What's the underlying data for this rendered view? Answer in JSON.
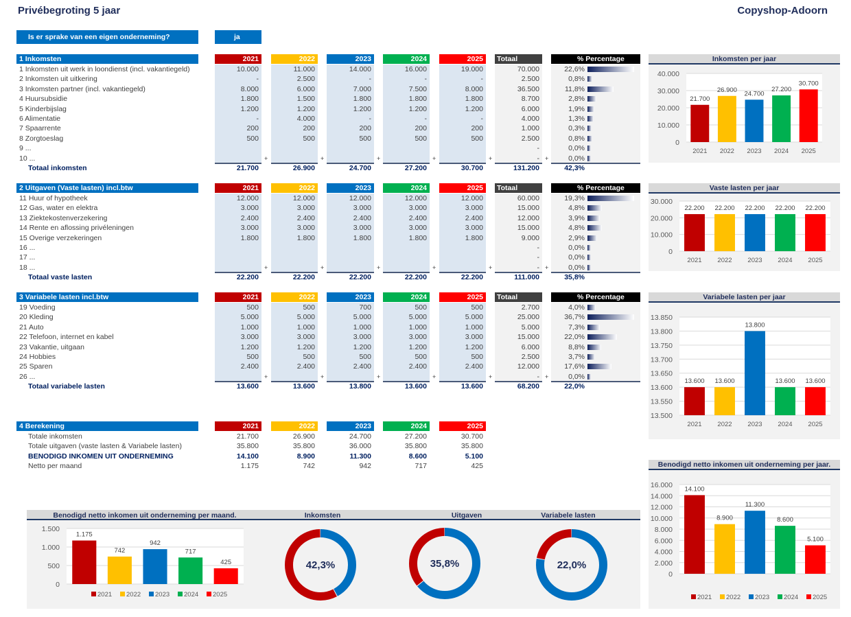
{
  "header": {
    "title": "Privébegroting 5 jaar",
    "brand": "Copyshop-Adoorn"
  },
  "question": {
    "label": "Is er sprake van een eigen onderneming?",
    "answer": "ja"
  },
  "years": [
    "2021",
    "2022",
    "2023",
    "2024",
    "2025"
  ],
  "colors": {
    "2021": "#c00000",
    "2022": "#ffc000",
    "2023": "#0070c0",
    "2024": "#00b050",
    "2025": "#ff0000",
    "section": "#0070c0",
    "totaal": "#404040",
    "percentage": "#000000"
  },
  "labels": {
    "totaal": "Totaal",
    "percentage": "%  Percentage"
  },
  "sections": [
    {
      "title": "1  Inkomsten",
      "total_label": "Totaal inkomsten",
      "rows": [
        {
          "label": " 1 Inkomsten uit werk in loondienst (incl. vakantiegeld)",
          "values": [
            "10.000",
            "11.000",
            "14.000",
            "16.000",
            "19.000"
          ],
          "total": "70.000",
          "pct": "22,6%",
          "pct_value": 22.6
        },
        {
          "label": " 2 Inkomsten uit uitkering",
          "values": [
            "-",
            "2.500",
            "-",
            "-",
            "-"
          ],
          "total": "2.500",
          "pct": "0,8%",
          "pct_value": 0.8
        },
        {
          "label": " 3 Inkomsten partner (incl. vakantiegeld)",
          "values": [
            "8.000",
            "6.000",
            "7.000",
            "7.500",
            "8.000"
          ],
          "total": "36.500",
          "pct": "11,8%",
          "pct_value": 11.8
        },
        {
          "label": " 4 Huursubsidie",
          "values": [
            "1.800",
            "1.500",
            "1.800",
            "1.800",
            "1.800"
          ],
          "total": "8.700",
          "pct": "2,8%",
          "pct_value": 2.8
        },
        {
          "label": " 5 Kinderbijslag",
          "values": [
            "1.200",
            "1.200",
            "1.200",
            "1.200",
            "1.200"
          ],
          "total": "6.000",
          "pct": "1,9%",
          "pct_value": 1.9
        },
        {
          "label": " 6 Alimentatie",
          "values": [
            "-",
            "4.000",
            "-",
            "-",
            "-"
          ],
          "total": "4.000",
          "pct": "1,3%",
          "pct_value": 1.3
        },
        {
          "label": " 7 Spaarrente",
          "values": [
            "200",
            "200",
            "200",
            "200",
            "200"
          ],
          "total": "1.000",
          "pct": "0,3%",
          "pct_value": 0.3
        },
        {
          "label": " 8 Zorgtoeslag",
          "values": [
            "500",
            "500",
            "500",
            "500",
            "500"
          ],
          "total": "2.500",
          "pct": "0,8%",
          "pct_value": 0.8
        },
        {
          "label": " 9 ...",
          "values": [
            "",
            "",
            "",
            "",
            ""
          ],
          "total": "-",
          "pct": "0,0%",
          "pct_value": 0
        },
        {
          "label": "10 ...",
          "values": [
            "",
            "",
            "",
            "",
            ""
          ],
          "total": "-",
          "pct": "0,0%",
          "pct_value": 0
        }
      ],
      "totals": [
        "21.700",
        "26.900",
        "24.700",
        "27.200",
        "30.700"
      ],
      "grand_total": "131.200",
      "grand_pct": "42,3%"
    },
    {
      "title": "2  Uitgaven (Vaste lasten) incl.btw",
      "total_label": "Totaal vaste lasten",
      "rows": [
        {
          "label": "11 Huur of hypotheek",
          "values": [
            "12.000",
            "12.000",
            "12.000",
            "12.000",
            "12.000"
          ],
          "total": "60.000",
          "pct": "19,3%",
          "pct_value": 19.3
        },
        {
          "label": "12 Gas, water en elektra",
          "values": [
            "3.000",
            "3.000",
            "3.000",
            "3.000",
            "3.000"
          ],
          "total": "15.000",
          "pct": "4,8%",
          "pct_value": 4.8
        },
        {
          "label": "13 Ziektekostenverzekering",
          "values": [
            "2.400",
            "2.400",
            "2.400",
            "2.400",
            "2.400"
          ],
          "total": "12.000",
          "pct": "3,9%",
          "pct_value": 3.9
        },
        {
          "label": "14 Rente en aflossing privéleningen",
          "values": [
            "3.000",
            "3.000",
            "3.000",
            "3.000",
            "3.000"
          ],
          "total": "15.000",
          "pct": "4,8%",
          "pct_value": 4.8
        },
        {
          "label": "15 Overige verzekeringen",
          "values": [
            "1.800",
            "1.800",
            "1.800",
            "1.800",
            "1.800"
          ],
          "total": "9.000",
          "pct": "2,9%",
          "pct_value": 2.9
        },
        {
          "label": "16 ...",
          "values": [
            "",
            "",
            "",
            "",
            ""
          ],
          "total": "-",
          "pct": "0,0%",
          "pct_value": 0
        },
        {
          "label": "17 ...",
          "values": [
            "",
            "",
            "",
            "",
            ""
          ],
          "total": "-",
          "pct": "0,0%",
          "pct_value": 0
        },
        {
          "label": "18 ...",
          "values": [
            "",
            "",
            "",
            "",
            ""
          ],
          "total": "-",
          "pct": "0,0%",
          "pct_value": 0
        }
      ],
      "totals": [
        "22.200",
        "22.200",
        "22.200",
        "22.200",
        "22.200"
      ],
      "grand_total": "111.000",
      "grand_pct": "35,8%"
    },
    {
      "title": "3  Variabele lasten incl.btw",
      "total_label": "Totaal variabele lasten",
      "rows": [
        {
          "label": "19 Voeding",
          "values": [
            "500",
            "500",
            "700",
            "500",
            "500"
          ],
          "total": "2.700",
          "pct": "4,0%",
          "pct_value": 4.0
        },
        {
          "label": "20 Kleding",
          "values": [
            "5.000",
            "5.000",
            "5.000",
            "5.000",
            "5.000"
          ],
          "total": "25.000",
          "pct": "36,7%",
          "pct_value": 36.7
        },
        {
          "label": "21 Auto",
          "values": [
            "1.000",
            "1.000",
            "1.000",
            "1.000",
            "1.000"
          ],
          "total": "5.000",
          "pct": "7,3%",
          "pct_value": 7.3
        },
        {
          "label": "22 Telefoon, internet en kabel",
          "values": [
            "3.000",
            "3.000",
            "3.000",
            "3.000",
            "3.000"
          ],
          "total": "15.000",
          "pct": "22,0%",
          "pct_value": 22.0
        },
        {
          "label": "23 Vakantie, uitgaan",
          "values": [
            "1.200",
            "1.200",
            "1.200",
            "1.200",
            "1.200"
          ],
          "total": "6.000",
          "pct": "8,8%",
          "pct_value": 8.8
        },
        {
          "label": "24 Hobbies",
          "values": [
            "500",
            "500",
            "500",
            "500",
            "500"
          ],
          "total": "2.500",
          "pct": "3,7%",
          "pct_value": 3.7
        },
        {
          "label": "25 Sparen",
          "values": [
            "2.400",
            "2.400",
            "2.400",
            "2.400",
            "2.400"
          ],
          "total": "12.000",
          "pct": "17,6%",
          "pct_value": 17.6
        },
        {
          "label": "26 ...",
          "values": [
            "",
            "",
            "",
            "",
            ""
          ],
          "total": "-",
          "pct": "0,0%",
          "pct_value": 0
        }
      ],
      "totals": [
        "13.600",
        "13.600",
        "13.800",
        "13.600",
        "13.600"
      ],
      "grand_total": "68.200",
      "grand_pct": "22,0%"
    }
  ],
  "berekening": {
    "title": "4  Berekening",
    "rows": [
      {
        "label": "Totale inkomsten",
        "values": [
          "21.700",
          "26.900",
          "24.700",
          "27.200",
          "30.700"
        ],
        "bold": false
      },
      {
        "label": "Totale uitgaven (vaste lasten & Variabele lasten)",
        "values": [
          "35.800",
          "35.800",
          "36.000",
          "35.800",
          "35.800"
        ],
        "bold": false
      },
      {
        "label": "BENODIGD INKOMEN UIT ONDERNEMING",
        "values": [
          "14.100",
          "8.900",
          "11.300",
          "8.600",
          "5.100"
        ],
        "bold": true
      },
      {
        "label": "Netto per maand",
        "values": [
          "1.175",
          "742",
          "942",
          "717",
          "425"
        ],
        "bold": false
      }
    ]
  },
  "chart_data": [
    {
      "type": "bar",
      "title": "Inkomsten per jaar",
      "categories": [
        "2021",
        "2022",
        "2023",
        "2024",
        "2025"
      ],
      "values": [
        21700,
        26900,
        24700,
        27200,
        30700
      ],
      "data_labels": [
        "21.700",
        "26.900",
        "24.700",
        "27.200",
        "30.700"
      ],
      "ylim": [
        0,
        40000
      ],
      "ticks": [
        "0",
        "10.000",
        "20.000",
        "30.000",
        "40.000"
      ],
      "grid": true
    },
    {
      "type": "bar",
      "title": "Vaste lasten per jaar",
      "categories": [
        "2021",
        "2022",
        "2023",
        "2024",
        "2025"
      ],
      "values": [
        22200,
        22200,
        22200,
        22200,
        22200
      ],
      "data_labels": [
        "22.200",
        "22.200",
        "22.200",
        "22.200",
        "22.200"
      ],
      "ylim": [
        0,
        30000
      ],
      "ticks": [
        "0",
        "10.000",
        "20.000",
        "30.000"
      ],
      "grid": true
    },
    {
      "type": "bar",
      "title": "Variabele lasten per jaar",
      "categories": [
        "2021",
        "2022",
        "2023",
        "2024",
        "2025"
      ],
      "values": [
        13600,
        13600,
        13800,
        13600,
        13600
      ],
      "data_labels": [
        "13.600",
        "13.600",
        "13.800",
        "13.600",
        "13.600"
      ],
      "ylim": [
        13500,
        13850
      ],
      "ticks": [
        "13.500",
        "13.550",
        "13.600",
        "13.650",
        "13.700",
        "13.750",
        "13.800",
        "13.850"
      ],
      "grid": true
    },
    {
      "type": "bar",
      "title": "Benodigd netto inkomen uit onderneming per jaar.",
      "categories": [
        "2021",
        "2022",
        "2023",
        "2024",
        "2025"
      ],
      "values": [
        14100,
        8900,
        11300,
        8600,
        5100
      ],
      "data_labels": [
        "14.100",
        "8.900",
        "11.300",
        "8.600",
        "5.100"
      ],
      "ylim": [
        0,
        16000
      ],
      "ticks": [
        "0",
        "2.000",
        "4.000",
        "6.000",
        "8.000",
        "10.000",
        "12.000",
        "14.000",
        "16.000"
      ],
      "grid": true,
      "legend": "bottom"
    },
    {
      "type": "bar",
      "title": "Benodigd netto inkomen uit onderneming per maand.",
      "categories": [
        "2021",
        "2022",
        "2023",
        "2024",
        "2025"
      ],
      "values": [
        1175,
        742,
        942,
        717,
        425
      ],
      "data_labels": [
        "1.175",
        "742",
        "942",
        "717",
        "425"
      ],
      "ylim": [
        0,
        1500
      ],
      "ticks": [
        "0",
        "500",
        "1.000",
        "1.500"
      ],
      "grid": true,
      "legend": "bottom"
    },
    {
      "type": "pie",
      "title": "Inkomsten",
      "center_label": "42,3%",
      "slices": [
        {
          "value": 42.3,
          "color": "#0070c0"
        },
        {
          "value": 57.7,
          "color": "#c00000"
        }
      ]
    },
    {
      "type": "pie",
      "title": "Uitgaven",
      "center_label": "35,8%",
      "slices": [
        {
          "value": 64.2,
          "color": "#0070c0"
        },
        {
          "value": 35.8,
          "color": "#c00000"
        }
      ]
    },
    {
      "type": "pie",
      "title": "Variabele lasten",
      "center_label": "22,0%",
      "slices": [
        {
          "value": 78.0,
          "color": "#0070c0"
        },
        {
          "value": 22.0,
          "color": "#c00000"
        }
      ]
    }
  ]
}
